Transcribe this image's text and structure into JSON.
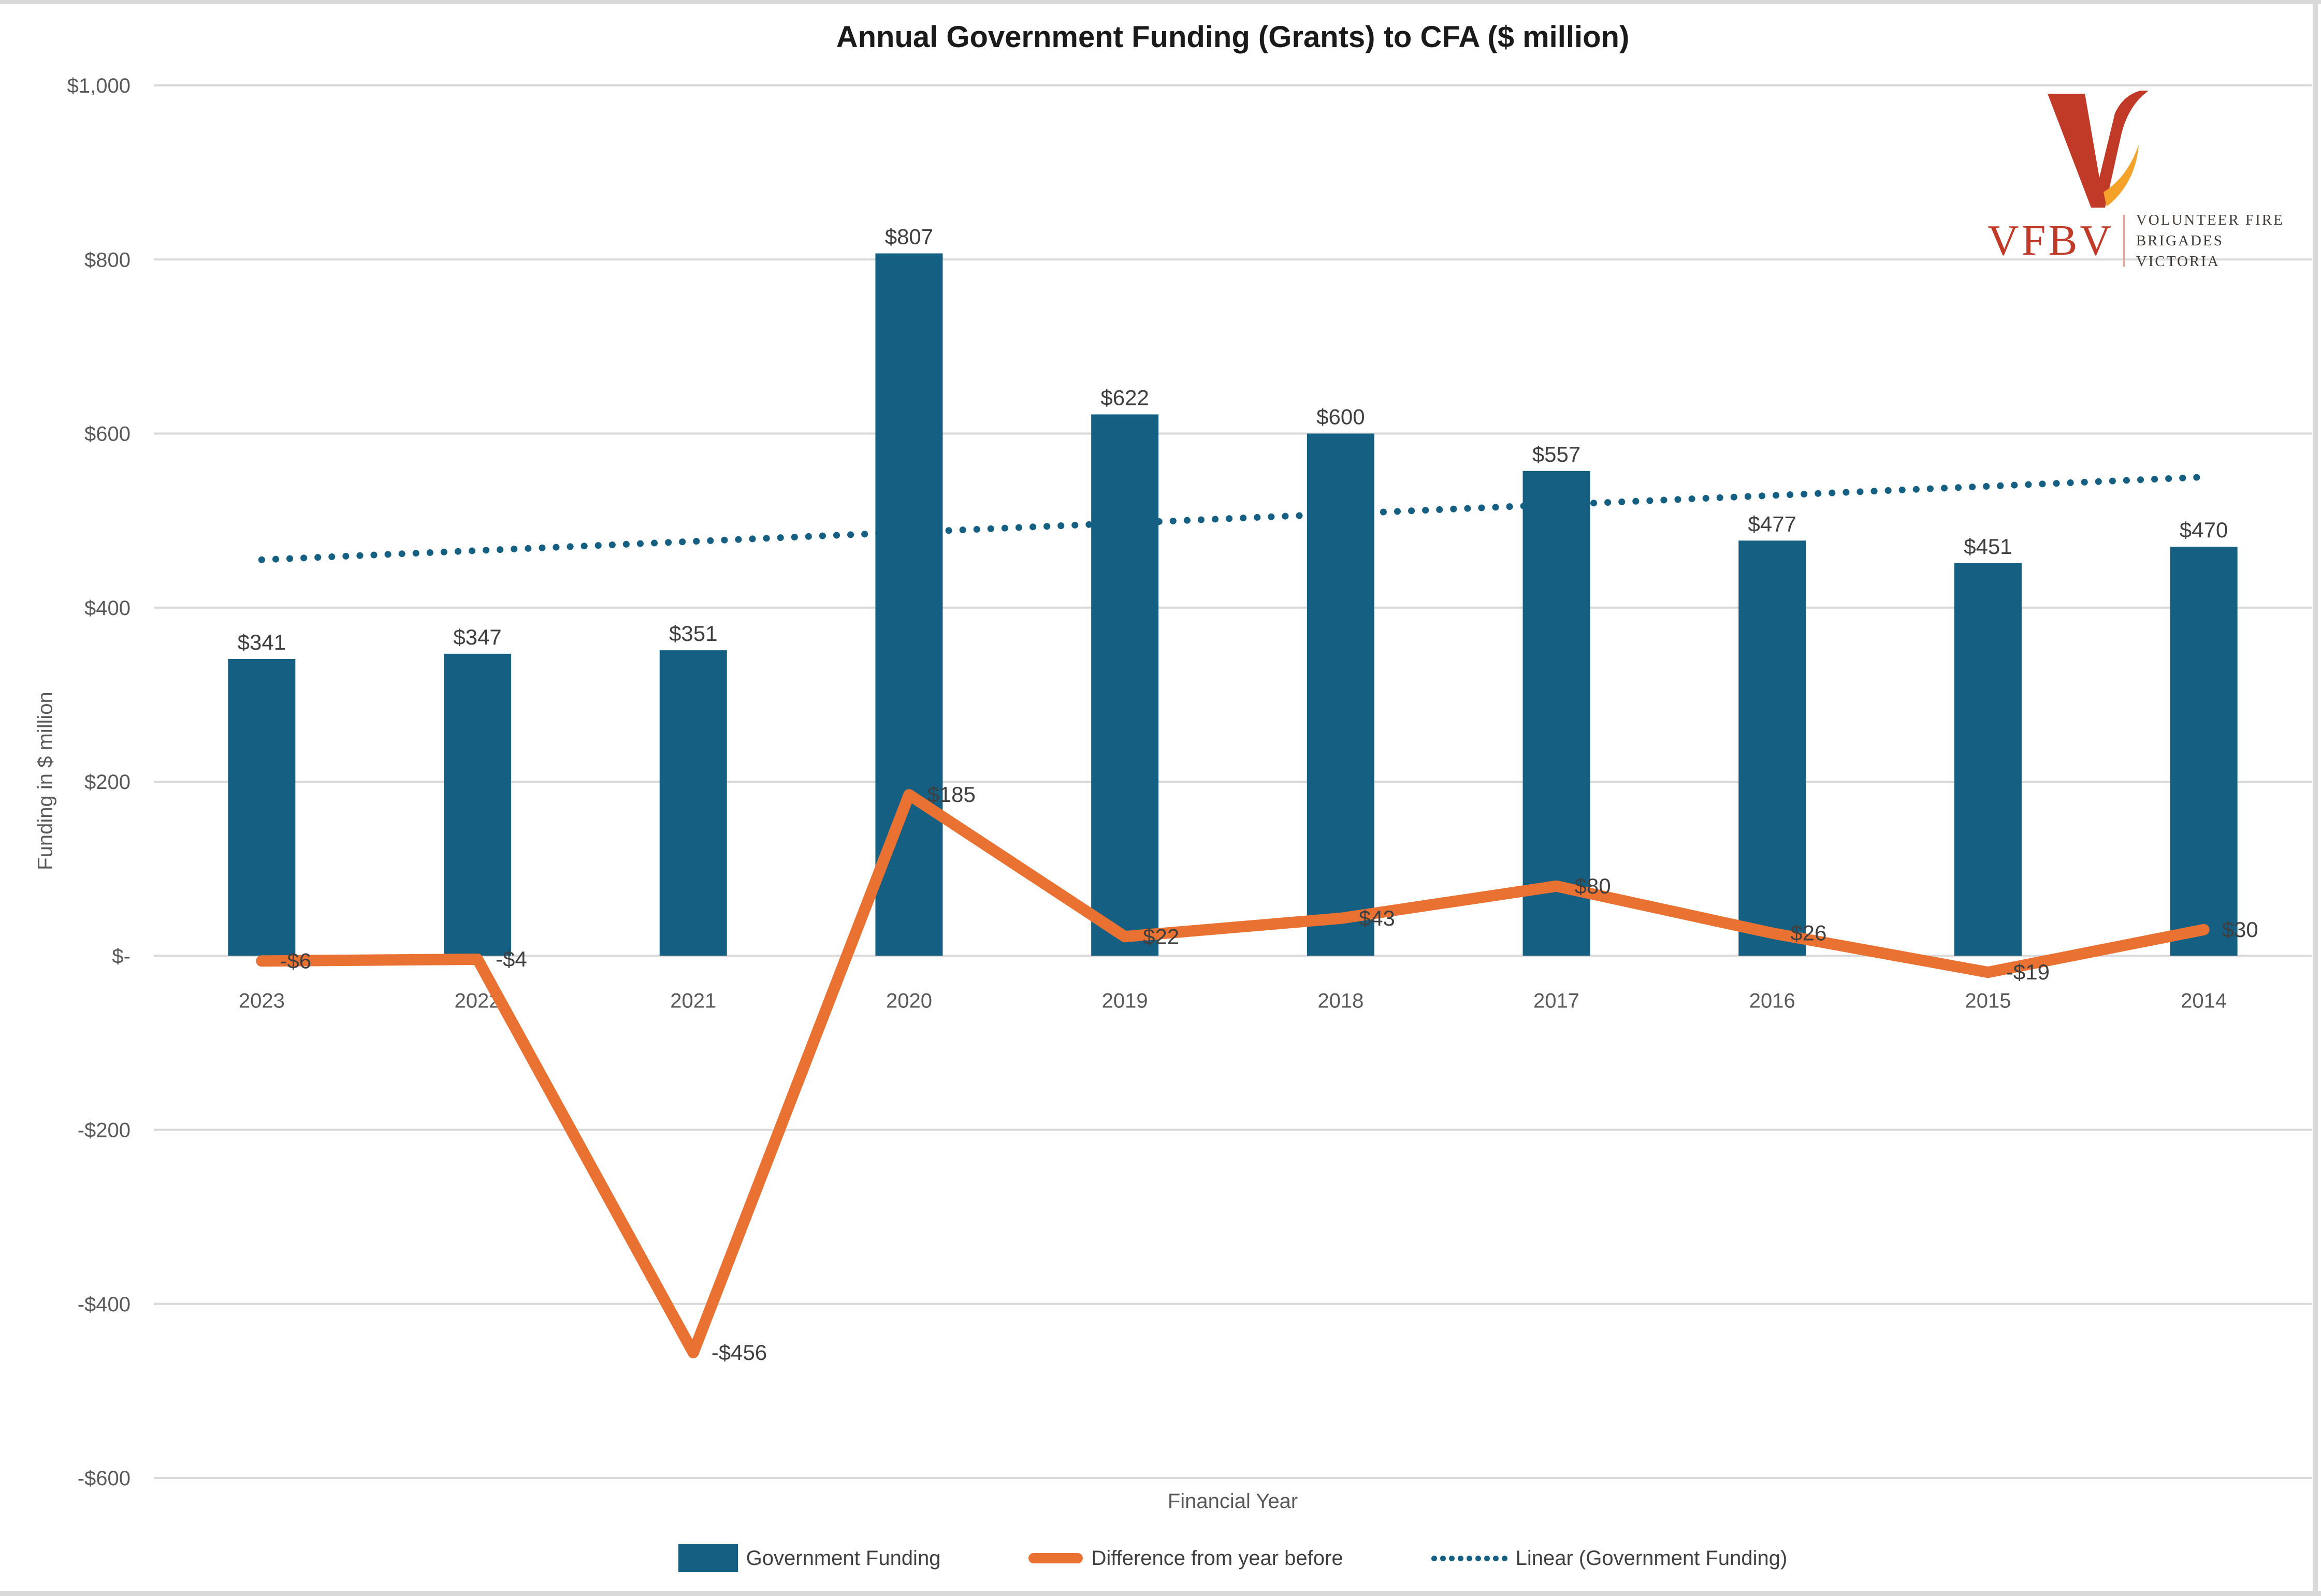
{
  "page": {
    "title": "Annual Government Funding (Grants) to CFA ($ million)"
  },
  "logo": {
    "acronym": "VFBV",
    "org_line1": "VOLUNTEER FIRE",
    "org_line2": "BRIGADES VICTORIA"
  },
  "colors": {
    "bar": "#156082",
    "line": "#E97132",
    "trend": "#156082",
    "grid": "#d9d9d9",
    "tick_text": "#595959",
    "data_label": "#3f3f3f",
    "logo_red": "#c13a28",
    "logo_flame_orange": "#f4a229"
  },
  "chart_data": {
    "type": "bar",
    "title": "Annual Government Funding (Grants) to CFA ($ million)",
    "xlabel": "Financial Year",
    "ylabel": "Funding in $ million",
    "ylim": [
      -600,
      1000
    ],
    "ytick_step": 200,
    "ytick_labels": [
      "$1,000",
      "$800",
      "$600",
      "$400",
      "$200",
      "$-",
      "-$200",
      "-$400",
      "-$600"
    ],
    "grid": "horizontal",
    "legend_position": "bottom",
    "categories": [
      "2023",
      "2022",
      "2021",
      "2020",
      "2019",
      "2018",
      "2017",
      "2016",
      "2015",
      "2014"
    ],
    "series": [
      {
        "name": "Government Funding",
        "type": "bar",
        "color": "#156082",
        "values": [
          341,
          347,
          351,
          807,
          622,
          600,
          557,
          477,
          451,
          470
        ],
        "labels": [
          "$341",
          "$347",
          "$351",
          "$807",
          "$622",
          "$600",
          "$557",
          "$477",
          "$451",
          "$470"
        ]
      },
      {
        "name": "Difference from year before",
        "type": "line",
        "color": "#E97132",
        "values": [
          -6,
          -4,
          -456,
          185,
          22,
          43,
          80,
          26,
          -19,
          30
        ],
        "labels": [
          "-$6",
          "-$4",
          "-$456",
          "$185",
          "$22",
          "$43",
          "$80",
          "$26",
          "-$19",
          "$30"
        ]
      },
      {
        "name": "Linear (Government Funding)",
        "type": "trendline",
        "style": "dotted",
        "color": "#156082",
        "start_value": 455,
        "end_value": 550
      }
    ],
    "legend": [
      {
        "label": "Government Funding",
        "swatch": "bar"
      },
      {
        "label": "Difference from year before",
        "swatch": "line"
      },
      {
        "label": "Linear (Government Funding)",
        "swatch": "dots"
      }
    ]
  }
}
